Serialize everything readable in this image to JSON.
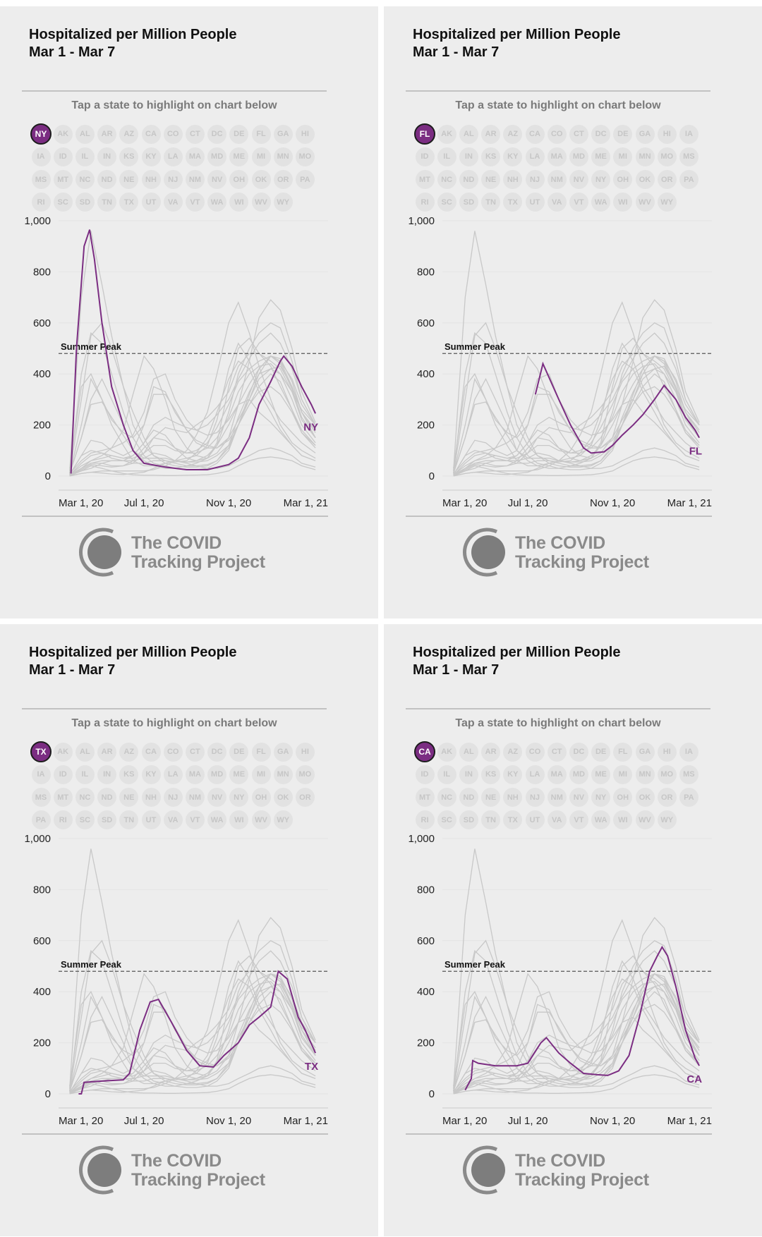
{
  "states": [
    "AK",
    "AL",
    "AR",
    "AZ",
    "CA",
    "CO",
    "CT",
    "DC",
    "DE",
    "FL",
    "GA",
    "HI",
    "IA",
    "ID",
    "IL",
    "IN",
    "KS",
    "KY",
    "LA",
    "MA",
    "MD",
    "ME",
    "MI",
    "MN",
    "MO",
    "MS",
    "MT",
    "NC",
    "ND",
    "NE",
    "NH",
    "NJ",
    "NM",
    "NV",
    "NY",
    "OH",
    "OK",
    "OR",
    "PA",
    "RI",
    "SC",
    "SD",
    "TN",
    "TX",
    "UT",
    "VA",
    "VT",
    "WA",
    "WI",
    "WV",
    "WY"
  ],
  "colors": {
    "highlight": "#7b2d82",
    "background_lines": "#c8c8c8",
    "panel_bg": "#ededed",
    "reference_line": "#555555"
  },
  "logo": {
    "line1": "The COVID",
    "line2": "Tracking Project"
  },
  "panels": [
    {
      "title": "Hospitalized per Million People",
      "subtitle": "Mar 1 - Mar 7",
      "prompt": "Tap a state to highlight on chart below",
      "selected": "NY"
    },
    {
      "title": "Hospitalized per Million People",
      "subtitle": "Mar 1 - Mar 7",
      "prompt": "Tap a state to highlight on chart below",
      "selected": "FL"
    },
    {
      "title": "Hospitalized per Million People",
      "subtitle": "Mar 1 - Mar 7",
      "prompt": "Tap a state to highlight on chart below",
      "selected": "TX"
    },
    {
      "title": "Hospitalized per Million People",
      "subtitle": "Mar 1 - Mar 7",
      "prompt": "Tap a state to highlight on chart below",
      "selected": "CA"
    }
  ],
  "chart_data": {
    "type": "line",
    "ylim": [
      0,
      1000
    ],
    "yticks": [
      0,
      200,
      400,
      600,
      800,
      1000
    ],
    "ytick_labels": [
      "0",
      "200",
      "400",
      "600",
      "800",
      "1,000"
    ],
    "xticks": [
      {
        "date": "2020-03-01",
        "label": "Mar 1, 20"
      },
      {
        "date": "2020-07-01",
        "label": "Jul 1, 20"
      },
      {
        "date": "2020-11-01",
        "label": "Nov 1, 20"
      },
      {
        "date": "2021-03-01",
        "label": "Mar 1, 21"
      }
    ],
    "grid": true,
    "reference_line": {
      "label": "Summer Peak",
      "value": 480
    },
    "background_dates": [
      "2020-03-15",
      "2020-04-01",
      "2020-04-15",
      "2020-05-01",
      "2020-05-15",
      "2020-06-01",
      "2020-06-15",
      "2020-07-01",
      "2020-07-15",
      "2020-08-01",
      "2020-08-15",
      "2020-09-01",
      "2020-09-15",
      "2020-10-01",
      "2020-10-15",
      "2020-11-01",
      "2020-11-15",
      "2020-12-01",
      "2020-12-15",
      "2021-01-01",
      "2021-01-15",
      "2021-02-01",
      "2021-02-15",
      "2021-03-07"
    ],
    "background_series": [
      [
        20,
        700,
        960,
        750,
        550,
        350,
        200,
        120,
        80,
        60,
        50,
        40,
        40,
        45,
        60,
        120,
        230,
        330,
        400,
        420,
        400,
        330,
        260,
        200
      ],
      [
        10,
        400,
        560,
        520,
        400,
        250,
        150,
        80,
        50,
        40,
        30,
        25,
        25,
        30,
        50,
        100,
        200,
        300,
        380,
        420,
        430,
        350,
        250,
        180
      ],
      [
        10,
        300,
        550,
        600,
        500,
        350,
        250,
        150,
        80,
        50,
        40,
        35,
        35,
        40,
        60,
        110,
        200,
        320,
        420,
        470,
        460,
        370,
        250,
        150
      ],
      [
        30,
        350,
        400,
        300,
        220,
        170,
        150,
        200,
        350,
        330,
        250,
        180,
        140,
        120,
        110,
        140,
        200,
        280,
        350,
        400,
        370,
        260,
        180,
        120
      ],
      [
        5,
        40,
        60,
        80,
        110,
        180,
        320,
        470,
        420,
        300,
        180,
        110,
        80,
        70,
        90,
        150,
        280,
        450,
        620,
        690,
        650,
        500,
        330,
        210
      ],
      [
        10,
        60,
        90,
        100,
        110,
        130,
        160,
        250,
        380,
        400,
        300,
        220,
        180,
        160,
        170,
        220,
        280,
        360,
        420,
        470,
        450,
        380,
        280,
        200
      ],
      [
        0,
        10,
        15,
        20,
        20,
        20,
        20,
        20,
        25,
        40,
        60,
        100,
        160,
        250,
        400,
        600,
        680,
        560,
        430,
        300,
        200,
        130,
        100,
        70
      ],
      [
        5,
        30,
        60,
        70,
        80,
        70,
        80,
        130,
        180,
        160,
        110,
        70,
        60,
        70,
        130,
        350,
        500,
        540,
        480,
        430,
        350,
        260,
        170,
        110
      ],
      [
        3,
        20,
        30,
        50,
        60,
        60,
        50,
        50,
        60,
        60,
        55,
        60,
        90,
        150,
        250,
        380,
        450,
        420,
        330,
        250,
        180,
        120,
        80,
        60
      ],
      [
        5,
        80,
        140,
        130,
        100,
        80,
        100,
        200,
        320,
        320,
        260,
        180,
        130,
        110,
        110,
        150,
        220,
        300,
        400,
        470,
        450,
        350,
        250,
        170
      ],
      [
        3,
        30,
        50,
        50,
        40,
        40,
        50,
        90,
        150,
        190,
        180,
        170,
        200,
        230,
        270,
        330,
        430,
        480,
        480,
        450,
        420,
        330,
        220,
        150
      ],
      [
        1,
        20,
        40,
        30,
        20,
        10,
        5,
        3,
        3,
        2,
        2,
        3,
        4,
        5,
        10,
        20,
        40,
        60,
        70,
        75,
        70,
        60,
        40,
        25
      ],
      [
        1,
        10,
        15,
        12,
        8,
        6,
        10,
        15,
        30,
        50,
        60,
        50,
        40,
        30,
        30,
        40,
        60,
        80,
        100,
        110,
        100,
        80,
        50,
        35
      ],
      [
        10,
        200,
        380,
        300,
        200,
        120,
        60,
        40,
        40,
        50,
        60,
        70,
        80,
        120,
        220,
        420,
        520,
        450,
        350,
        280,
        220,
        170,
        130,
        90
      ],
      [
        2,
        30,
        50,
        60,
        60,
        60,
        80,
        130,
        200,
        230,
        210,
        190,
        180,
        200,
        240,
        300,
        380,
        460,
        520,
        560,
        520,
        420,
        300,
        200
      ],
      [
        10,
        150,
        280,
        290,
        230,
        160,
        100,
        70,
        70,
        70,
        60,
        55,
        55,
        60,
        80,
        120,
        200,
        280,
        330,
        350,
        320,
        250,
        170,
        120
      ],
      [
        5,
        80,
        100,
        90,
        70,
        60,
        60,
        70,
        90,
        80,
        60,
        55,
        60,
        80,
        120,
        200,
        280,
        300,
        250,
        210,
        170,
        120,
        80,
        60
      ],
      [
        10,
        150,
        300,
        380,
        300,
        200,
        100,
        60,
        40,
        30,
        30,
        40,
        50,
        70,
        120,
        250,
        400,
        500,
        560,
        600,
        580,
        450,
        300,
        200
      ],
      [
        2,
        25,
        45,
        40,
        35,
        40,
        60,
        110,
        150,
        140,
        110,
        90,
        90,
        110,
        150,
        230,
        330,
        400,
        430,
        440,
        400,
        300,
        200,
        130
      ],
      [
        4,
        50,
        80,
        90,
        80,
        70,
        70,
        90,
        120,
        120,
        100,
        90,
        100,
        130,
        190,
        280,
        370,
        420,
        450,
        470,
        440,
        340,
        230,
        150
      ]
    ],
    "highlighted_series": [
      {
        "name": "NY",
        "points": [
          [
            "2020-03-17",
            10
          ],
          [
            "2020-03-25",
            500
          ],
          [
            "2020-04-05",
            900
          ],
          [
            "2020-04-13",
            965
          ],
          [
            "2020-04-20",
            850
          ],
          [
            "2020-05-01",
            600
          ],
          [
            "2020-05-15",
            350
          ],
          [
            "2020-06-01",
            200
          ],
          [
            "2020-06-15",
            100
          ],
          [
            "2020-07-01",
            50
          ],
          [
            "2020-08-01",
            35
          ],
          [
            "2020-09-01",
            25
          ],
          [
            "2020-10-01",
            25
          ],
          [
            "2020-11-01",
            45
          ],
          [
            "2020-11-15",
            70
          ],
          [
            "2020-12-01",
            150
          ],
          [
            "2020-12-15",
            280
          ],
          [
            "2021-01-01",
            370
          ],
          [
            "2021-01-15",
            450
          ],
          [
            "2021-01-20",
            470
          ],
          [
            "2021-02-01",
            430
          ],
          [
            "2021-02-15",
            350
          ],
          [
            "2021-03-01",
            280
          ],
          [
            "2021-03-07",
            245
          ]
        ]
      },
      {
        "name": "FL",
        "points": [
          [
            "2020-07-12",
            320
          ],
          [
            "2020-07-23",
            440
          ],
          [
            "2020-08-15",
            300
          ],
          [
            "2020-09-01",
            200
          ],
          [
            "2020-09-20",
            110
          ],
          [
            "2020-10-01",
            90
          ],
          [
            "2020-10-20",
            95
          ],
          [
            "2020-11-01",
            120
          ],
          [
            "2020-11-15",
            160
          ],
          [
            "2020-12-01",
            200
          ],
          [
            "2020-12-15",
            240
          ],
          [
            "2021-01-01",
            300
          ],
          [
            "2021-01-15",
            355
          ],
          [
            "2021-02-01",
            300
          ],
          [
            "2021-02-15",
            230
          ],
          [
            "2021-03-01",
            180
          ],
          [
            "2021-03-07",
            150
          ]
        ]
      },
      {
        "name": "TX",
        "points": [
          [
            "2020-03-28",
            0
          ],
          [
            "2020-04-01",
            0
          ],
          [
            "2020-04-05",
            45
          ],
          [
            "2020-05-01",
            50
          ],
          [
            "2020-06-01",
            55
          ],
          [
            "2020-06-10",
            80
          ],
          [
            "2020-06-25",
            250
          ],
          [
            "2020-07-10",
            360
          ],
          [
            "2020-07-22",
            370
          ],
          [
            "2020-08-10",
            280
          ],
          [
            "2020-09-01",
            170
          ],
          [
            "2020-09-20",
            110
          ],
          [
            "2020-10-10",
            105
          ],
          [
            "2020-10-25",
            150
          ],
          [
            "2020-11-15",
            200
          ],
          [
            "2020-12-01",
            270
          ],
          [
            "2020-12-15",
            300
          ],
          [
            "2021-01-01",
            340
          ],
          [
            "2021-01-12",
            480
          ],
          [
            "2021-01-25",
            450
          ],
          [
            "2021-02-10",
            300
          ],
          [
            "2021-02-20",
            250
          ],
          [
            "2021-03-07",
            160
          ]
        ]
      },
      {
        "name": "CA",
        "points": [
          [
            "2020-04-01",
            15
          ],
          [
            "2020-04-10",
            60
          ],
          [
            "2020-04-12",
            130
          ],
          [
            "2020-04-20",
            120
          ],
          [
            "2020-05-15",
            110
          ],
          [
            "2020-06-15",
            110
          ],
          [
            "2020-07-01",
            120
          ],
          [
            "2020-07-20",
            200
          ],
          [
            "2020-07-28",
            220
          ],
          [
            "2020-08-15",
            160
          ],
          [
            "2020-09-01",
            120
          ],
          [
            "2020-09-20",
            80
          ],
          [
            "2020-10-10",
            75
          ],
          [
            "2020-10-25",
            72
          ],
          [
            "2020-11-10",
            90
          ],
          [
            "2020-11-25",
            150
          ],
          [
            "2020-12-10",
            300
          ],
          [
            "2020-12-25",
            480
          ],
          [
            "2021-01-05",
            540
          ],
          [
            "2021-01-12",
            575
          ],
          [
            "2021-01-20",
            540
          ],
          [
            "2021-02-01",
            420
          ],
          [
            "2021-02-15",
            250
          ],
          [
            "2021-03-01",
            140
          ],
          [
            "2021-03-07",
            110
          ]
        ]
      }
    ]
  }
}
